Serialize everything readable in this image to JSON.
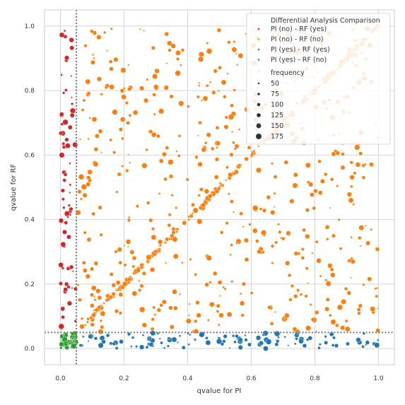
{
  "chart_data": {
    "type": "scatter",
    "title": "",
    "xlabel": "qvalue for PI",
    "ylabel": "qvalue for RF",
    "xlim": [
      -0.05,
      1.05
    ],
    "ylim": [
      -0.05,
      1.05
    ],
    "xticks": [
      0.0,
      0.2,
      0.4,
      0.6,
      0.8,
      1.0
    ],
    "yticks": [
      0.0,
      0.2,
      0.4,
      0.6,
      0.8,
      1.0
    ],
    "xtick_labels": [
      "0.0",
      "0.2",
      "0.4",
      "0.6",
      "0.8",
      "1.0"
    ],
    "ytick_labels": [
      "0.0",
      "0.2",
      "0.4",
      "0.6",
      "0.8",
      "1.0"
    ],
    "grid": true,
    "threshold": 0.05,
    "legend": {
      "placement": "top-right",
      "title": "Differential Analysis Comparison",
      "size_title": "frequency",
      "size_entries": [
        {
          "label": "50",
          "value": 50
        },
        {
          "label": "75",
          "value": 75
        },
        {
          "label": "100",
          "value": 100
        },
        {
          "label": "125",
          "value": 125
        },
        {
          "label": "150",
          "value": 150
        },
        {
          "label": "175",
          "value": 175
        }
      ]
    },
    "series": [
      {
        "name": "PI (no)  - RF (yes)",
        "color": "#d62728",
        "seed": 11,
        "n": 70,
        "xrange": [
          0.0,
          0.048
        ],
        "yrange": [
          0.06,
          0.99
        ],
        "diagonal": false
      },
      {
        "name": "PI (no)  - RF (no)",
        "color": "#ff7f0e",
        "seed": 23,
        "n": 560,
        "xrange": [
          0.052,
          1.0
        ],
        "yrange": [
          0.052,
          1.0
        ],
        "diagonal": true,
        "diagonal_n": 190
      },
      {
        "name": "PI (yes) - RF (yes)",
        "color": "#2ca02c",
        "seed": 37,
        "n": 45,
        "xrange": [
          0.0,
          0.048
        ],
        "yrange": [
          0.0,
          0.048
        ],
        "diagonal": false
      },
      {
        "name": "PI (yes) - RF (no)",
        "color": "#1f77b4",
        "seed": 41,
        "n": 110,
        "xrange": [
          0.052,
          1.0
        ],
        "yrange": [
          0.0,
          0.048
        ],
        "diagonal": false
      }
    ]
  }
}
